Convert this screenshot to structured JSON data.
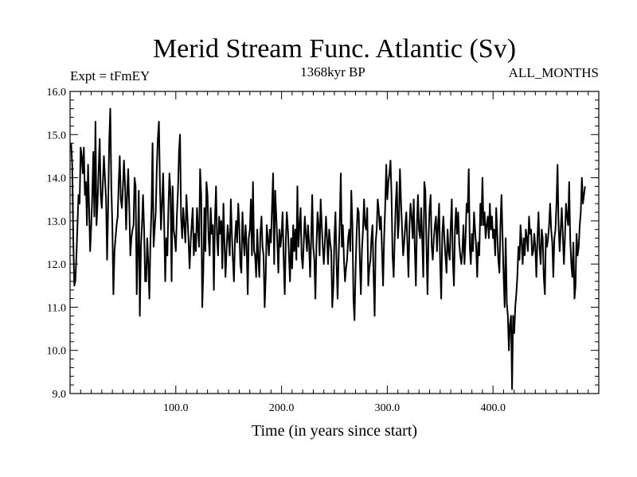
{
  "chart_data": {
    "type": "line",
    "title": "Merid Stream Func. Atlantic (Sv)",
    "subtitle_left": "Expt = tFmEY",
    "subtitle_center": "1368kyr BP",
    "subtitle_right": "ALL_MONTHS",
    "xlabel": "Time (in years since start)",
    "ylabel": "",
    "xlim": [
      0,
      500
    ],
    "ylim": [
      9.0,
      16.0
    ],
    "x_ticks": [
      100,
      200,
      300,
      400
    ],
    "x_tick_labels": [
      "100.0",
      "200.0",
      "300.0",
      "400.0"
    ],
    "y_ticks": [
      9,
      10,
      11,
      12,
      13,
      14,
      15,
      16
    ],
    "y_tick_labels": [
      "9.0",
      "10.0",
      "11.0",
      "12.0",
      "13.0",
      "14.0",
      "15.0",
      "16.0"
    ],
    "series": [
      {
        "name": "Merid Stream Func. Atlantic",
        "x_start": 1,
        "x_step": 1,
        "values": [
          14.8,
          14.3,
          12.6,
          11.5,
          11.6,
          12.2,
          12.9,
          13.6,
          13.4,
          14.7,
          14.5,
          14.1,
          14.7,
          13.6,
          13.9,
          12.9,
          14.3,
          13.3,
          12.3,
          12.9,
          13.6,
          14.6,
          13.1,
          15.3,
          12.9,
          13.4,
          14.2,
          14.9,
          13.6,
          13.3,
          13.9,
          14.5,
          14.0,
          13.5,
          12.1,
          13.3,
          14.8,
          15.6,
          13.8,
          12.9,
          11.3,
          12.3,
          12.6,
          12.9,
          13.1,
          13.9,
          14.5,
          13.5,
          13.3,
          13.8,
          14.4,
          13.8,
          12.8,
          13.6,
          14.2,
          13.3,
          12.2,
          12.6,
          12.8,
          12.9,
          14.0,
          13.8,
          11.3,
          12.3,
          13.7,
          10.8,
          12.4,
          12.9,
          13.6,
          12.8,
          11.6,
          11.6,
          12.6,
          12.0,
          11.2,
          12.5,
          13.3,
          14.8,
          12.4,
          12.8,
          13.2,
          14.2,
          14.9,
          15.3,
          13.8,
          12.8,
          13.4,
          14.1,
          12.9,
          11.6,
          12.6,
          12.2,
          13.3,
          14.1,
          13.6,
          11.6,
          13.8,
          12.8,
          12.6,
          12.3,
          13.1,
          13.7,
          14.6,
          15.0,
          13.1,
          12.6,
          13.3,
          12.9,
          12.5,
          13.6,
          13.1,
          12.6,
          11.9,
          12.5,
          12.9,
          13.3,
          12.2,
          12.7,
          12.3,
          13.3,
          12.8,
          12.4,
          14.2,
          13.6,
          11.0,
          11.8,
          13.3,
          12.3,
          13.9,
          13.6,
          12.6,
          12.2,
          13.3,
          12.7,
          12.9,
          11.4,
          13.0,
          13.8,
          12.6,
          12.2,
          13.1,
          12.7,
          13.0,
          11.9,
          13.4,
          12.5,
          11.7,
          12.3,
          12.9,
          12.6,
          12.2,
          13.5,
          12.7,
          12.1,
          11.6,
          12.6,
          13.0,
          12.5,
          13.4,
          12.9,
          12.0,
          11.8,
          13.2,
          12.6,
          12.2,
          12.9,
          12.4,
          11.3,
          12.6,
          12.8,
          13.5,
          12.2,
          13.9,
          12.3,
          12.2,
          11.7,
          12.8,
          12.1,
          11.7,
          12.7,
          13.1,
          12.4,
          12.2,
          11.0,
          11.7,
          12.9,
          12.6,
          12.2,
          12.8,
          12.5,
          13.3,
          14.1,
          12.0,
          13.7,
          13.1,
          12.5,
          11.8,
          12.8,
          12.4,
          12.7,
          13.2,
          12.1,
          11.3,
          12.5,
          13.2,
          12.8,
          12.2,
          11.6,
          12.6,
          11.9,
          12.9,
          12.3,
          12.8,
          12.1,
          13.8,
          12.4,
          12.9,
          13.3,
          12.2,
          11.9,
          12.5,
          13.1,
          12.7,
          12.3,
          12.9,
          12.5,
          11.7,
          12.6,
          13.6,
          12.4,
          12.1,
          11.2,
          12.4,
          13.2,
          12.9,
          12.2,
          13.5,
          12.9,
          12.4,
          12.0,
          12.5,
          13.1,
          12.6,
          12.0,
          12.8,
          12.5,
          12.3,
          11.0,
          11.5,
          12.6,
          13.2,
          12.0,
          11.2,
          12.2,
          12.9,
          14.1,
          12.4,
          12.9,
          12.1,
          11.6,
          11.9,
          12.1,
          12.6,
          12.8,
          12.3,
          13.7,
          12.9,
          11.2,
          10.7,
          11.9,
          12.7,
          13.3,
          13.2,
          12.1,
          11.3,
          12.3,
          12.8,
          13.5,
          12.9,
          12.8,
          13.3,
          11.5,
          11.9,
          12.1,
          12.6,
          12.9,
          11.8,
          10.8,
          12.5,
          12.8,
          13.5,
          13.2,
          12.8,
          13.1,
          12.3,
          11.5,
          12.6,
          13.3,
          14.3,
          13.5,
          13.9,
          14.1,
          14.4,
          13.6,
          12.2,
          11.7,
          12.6,
          13.4,
          13.9,
          12.6,
          13.0,
          14.2,
          13.4,
          12.8,
          12.2,
          12.5,
          12.9,
          13.2,
          12.5,
          11.7,
          12.9,
          13.4,
          13.1,
          12.6,
          13.5,
          12.4,
          11.5,
          12.9,
          13.6,
          12.8,
          12.6,
          13.3,
          12.6,
          11.7,
          13.9,
          13.7,
          12.5,
          11.3,
          12.6,
          13.3,
          13.6,
          12.4,
          12.1,
          12.6,
          12.9,
          13.1,
          12.3,
          12.9,
          13.4,
          12.0,
          11.2,
          12.7,
          13.1,
          12.6,
          12.2,
          11.8,
          12.8,
          12.3,
          12.1,
          12.9,
          13.5,
          12.1,
          11.5,
          12.8,
          13.3,
          12.7,
          13.2,
          12.5,
          12.2,
          12.0,
          12.3,
          12.9,
          12.0,
          12.6,
          13.4,
          13.2,
          14.2,
          12.4,
          12.0,
          12.7,
          12.3,
          13.2,
          12.8,
          12.4,
          11.7,
          12.5,
          12.2,
          13.4,
          12.9,
          14.0,
          12.9,
          13.2,
          12.6,
          12.9,
          13.1,
          12.6,
          13.4,
          12.8,
          13.1,
          12.6,
          12.8,
          12.2,
          13.3,
          12.7,
          12.1,
          11.8,
          12.9,
          13.6,
          12.6,
          11.7,
          11.0,
          12.6,
          11.1,
          10.8,
          10.0,
          10.6,
          10.8,
          9.1,
          10.8,
          10.4,
          11.0,
          11.3,
          11.7,
          12.4,
          12.1,
          12.9,
          12.5,
          12.0,
          12.6,
          12.2,
          12.8,
          12.6,
          12.3,
          13.1,
          12.7,
          12.8,
          12.2,
          12.3,
          12.7,
          12.4,
          11.7,
          12.6,
          13.2,
          12.4,
          12.0,
          12.8,
          12.6,
          11.7,
          11.3,
          12.7,
          12.4,
          12.6,
          12.9,
          13.4,
          12.8,
          12.5,
          11.7,
          12.6,
          12.8,
          13.4,
          14.3,
          12.9,
          12.3,
          12.8,
          13.3,
          12.7,
          12.0,
          12.6,
          13.4,
          13.1,
          12.9,
          13.9,
          12.6,
          12.0,
          11.7,
          12.5,
          11.2,
          11.5,
          12.7,
          12.2,
          12.4,
          12.9,
          13.2,
          14.0,
          13.4,
          13.6,
          13.8
        ]
      }
    ]
  }
}
